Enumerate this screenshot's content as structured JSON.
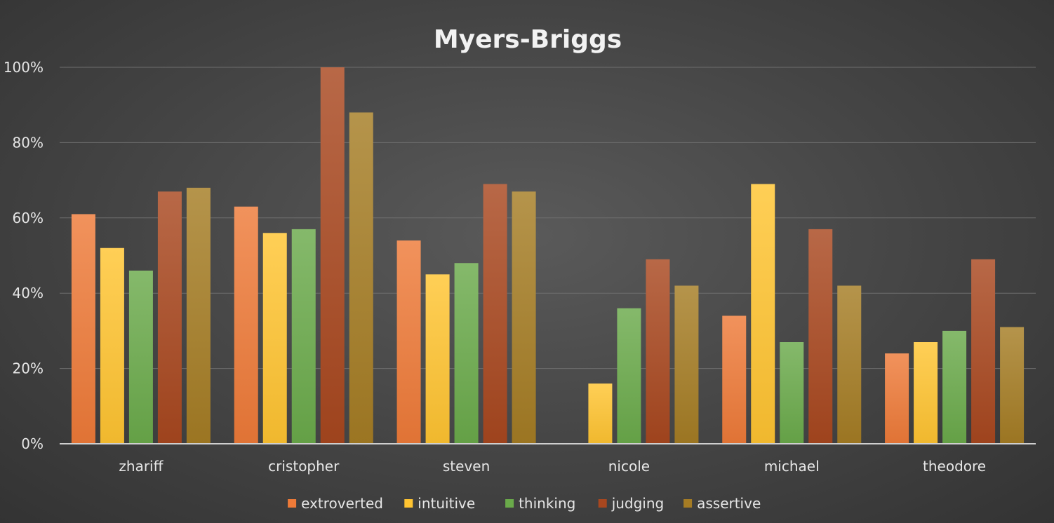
{
  "chart_data": {
    "type": "bar",
    "title": "Myers-Briggs",
    "xlabel": "",
    "ylabel": "",
    "ylim": [
      0,
      100
    ],
    "yticks": [
      0,
      20,
      40,
      60,
      80,
      100
    ],
    "ytick_labels": [
      "0%",
      "20%",
      "40%",
      "60%",
      "80%",
      "100%"
    ],
    "grid": true,
    "legend_position": "bottom",
    "categories": [
      "zhariff",
      "cristopher",
      "steven",
      "nicole",
      "michael",
      "theodore"
    ],
    "series": [
      {
        "name": "extroverted",
        "color": "#ee7a38",
        "values": [
          61,
          63,
          54,
          0,
          34,
          24
        ]
      },
      {
        "name": "intuitive",
        "color": "#ffc431",
        "values": [
          52,
          56,
          45,
          16,
          69,
          27
        ]
      },
      {
        "name": "thinking",
        "color": "#6aaa4a",
        "values": [
          46,
          57,
          48,
          36,
          27,
          30
        ]
      },
      {
        "name": "judging",
        "color": "#a8471f",
        "values": [
          67,
          100,
          69,
          49,
          57,
          49
        ]
      },
      {
        "name": "assertive",
        "color": "#a57c24",
        "values": [
          68,
          88,
          67,
          42,
          42,
          31
        ]
      }
    ]
  }
}
